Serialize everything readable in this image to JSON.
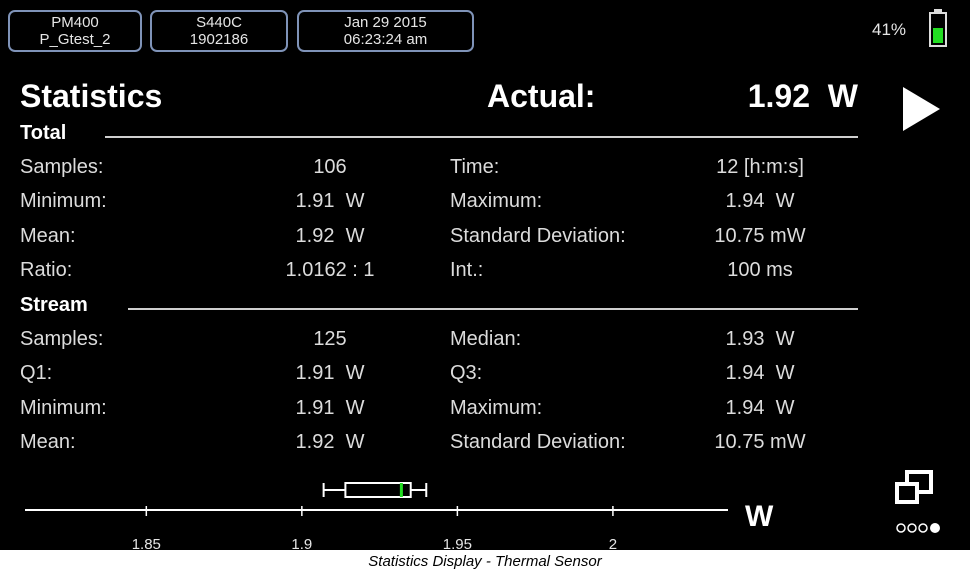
{
  "header": {
    "device": {
      "line1": "PM400",
      "line2": "P_Gtest_2"
    },
    "sensor": {
      "line1": "S440C",
      "line2": "1902186"
    },
    "datetime": {
      "line1": "Jan 29 2015",
      "line2": "06:23:24 am"
    },
    "battery": "41%"
  },
  "title": "Statistics",
  "actual_label": "Actual:",
  "actual_value": "1.92  W",
  "sections": [
    {
      "title": "Total",
      "rows": [
        [
          "Samples:",
          "106",
          "Time:",
          "12 [h:m:s]"
        ],
        [
          "Minimum:",
          "1.91  W",
          "Maximum:",
          "1.94  W"
        ],
        [
          "Mean:",
          "1.92  W",
          "Standard Deviation:",
          "10.75 mW"
        ],
        [
          "Ratio:",
          "1.0162 : 1",
          "Int.:",
          "100 ms"
        ]
      ]
    },
    {
      "title": "Stream",
      "rows": [
        [
          "Samples:",
          "125",
          "Median:",
          "1.93  W"
        ],
        [
          "Q1:",
          "1.91  W",
          "Q3:",
          "1.94  W"
        ],
        [
          "Minimum:",
          "1.91  W",
          "Maximum:",
          "1.94  W"
        ],
        [
          "Mean:",
          "1.92  W",
          "Standard Deviation:",
          "10.75 mW"
        ]
      ]
    }
  ],
  "chart_data": {
    "type": "boxplot",
    "x_label": "W",
    "min": 1.907,
    "q1": 1.914,
    "median": 1.932,
    "q3": 1.935,
    "max": 1.94,
    "median_color": "#22dd22",
    "xlim": [
      1.811,
      2.037
    ],
    "xticks": [
      1.85,
      1.9,
      1.95,
      2
    ]
  },
  "caption": "Statistics Display - Thermal Sensor"
}
